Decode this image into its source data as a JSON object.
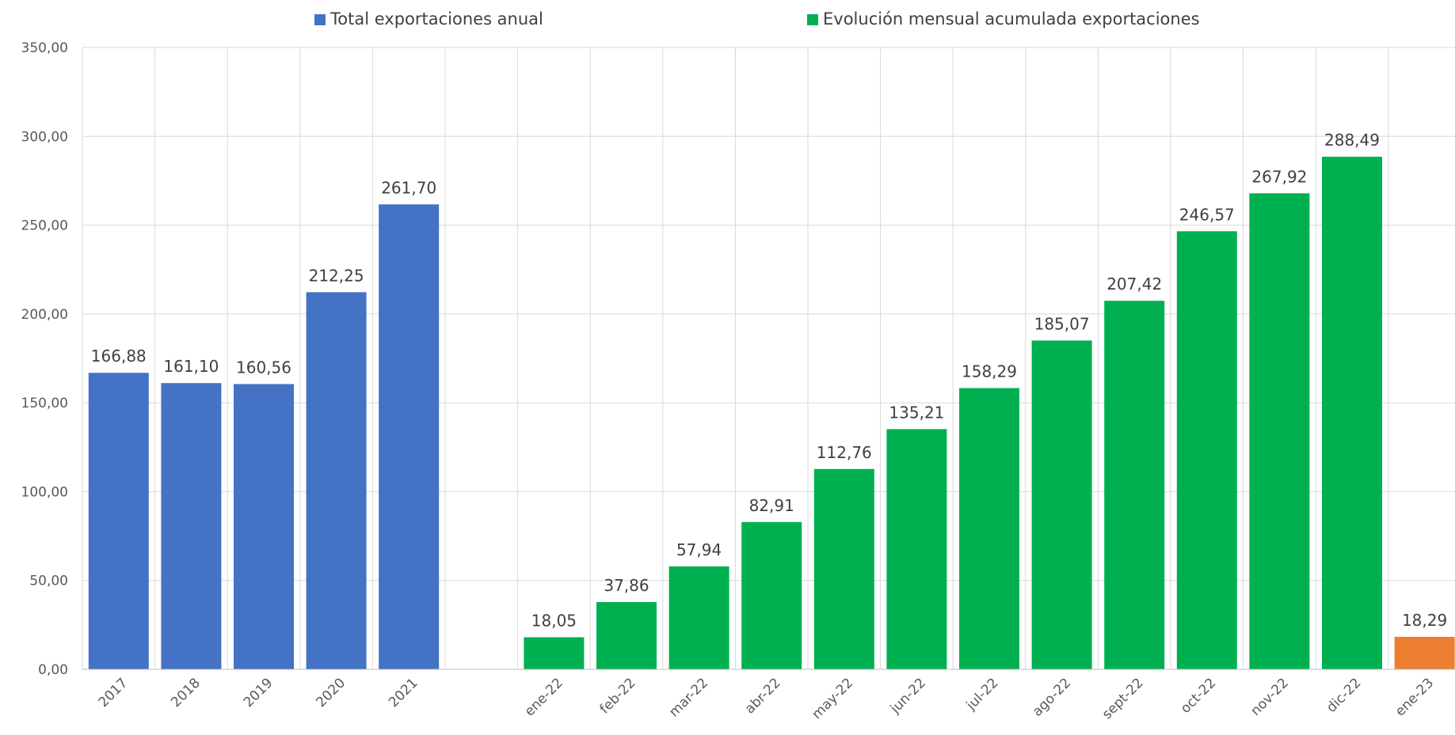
{
  "chart_data": {
    "type": "bar",
    "ylim": [
      0,
      350
    ],
    "ytick_labels": [
      "0,00",
      "50,00",
      "100,00",
      "150,00",
      "200,00",
      "250,00",
      "300,00",
      "350,00"
    ],
    "grid": true,
    "legend_position": "top",
    "categories": [
      "2017",
      "2018",
      "2019",
      "2020",
      "2021",
      "",
      "ene-22",
      "feb-22",
      "mar-22",
      "abr-22",
      "may-22",
      "jun-22",
      "jul-22",
      "ago-22",
      "sept-22",
      "oct-22",
      "nov-22",
      "dic-22",
      "ene-23"
    ],
    "series": [
      {
        "name": "Total exportaciones anual",
        "color": "#4472C4",
        "values": [
          166.88,
          161.1,
          160.56,
          212.25,
          261.7,
          null,
          null,
          null,
          null,
          null,
          null,
          null,
          null,
          null,
          null,
          null,
          null,
          null,
          null
        ],
        "labels": [
          "166,88",
          "161,10",
          "160,56",
          "212,25",
          "261,70",
          null,
          null,
          null,
          null,
          null,
          null,
          null,
          null,
          null,
          null,
          null,
          null,
          null,
          null
        ]
      },
      {
        "name": "Evolución mensual acumulada exportaciones",
        "color": "#00B050",
        "values": [
          null,
          null,
          null,
          null,
          null,
          null,
          18.05,
          37.86,
          57.94,
          82.91,
          112.76,
          135.21,
          158.29,
          185.07,
          207.42,
          246.57,
          267.92,
          288.49,
          null
        ],
        "labels": [
          null,
          null,
          null,
          null,
          null,
          null,
          "18,05",
          "37,86",
          "57,94",
          "82,91",
          "112,76",
          "135,21",
          "158,29",
          "185,07",
          "207,42",
          "246,57",
          "267,92",
          "288,49",
          null
        ]
      },
      {
        "color": "#ED7D31",
        "values": [
          null,
          null,
          null,
          null,
          null,
          null,
          null,
          null,
          null,
          null,
          null,
          null,
          null,
          null,
          null,
          null,
          null,
          null,
          18.29
        ],
        "labels": [
          null,
          null,
          null,
          null,
          null,
          null,
          null,
          null,
          null,
          null,
          null,
          null,
          null,
          null,
          null,
          null,
          null,
          null,
          "18,29"
        ]
      }
    ]
  }
}
